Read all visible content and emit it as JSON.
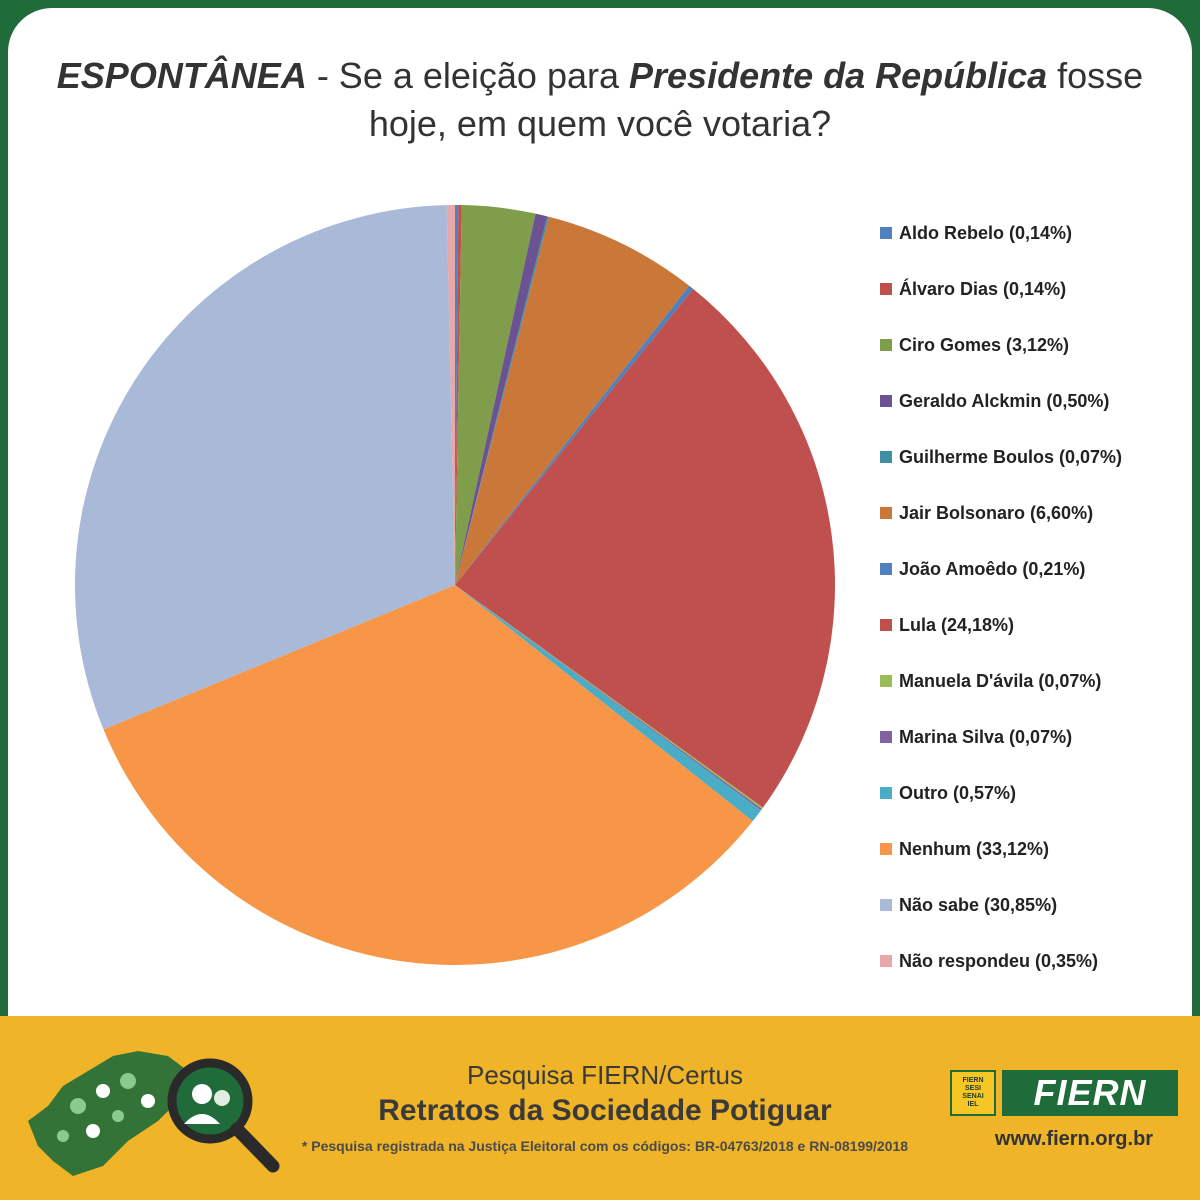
{
  "title": {
    "prefix": "ESPONTÂNEA",
    "part1": " - Se a eleição para ",
    "emphasis": "Presidente da República",
    "part2": " fosse hoje, em quem você votaria?"
  },
  "chart_data": {
    "type": "pie",
    "start_angle_deg": -90,
    "direction": "clockwise",
    "slices": [
      {
        "label": "Aldo Rebelo (0,14%)",
        "value": 0.14,
        "color": "#4f81bd"
      },
      {
        "label": "Álvaro Dias (0,14%)",
        "value": 0.14,
        "color": "#c0504d"
      },
      {
        "label": "Ciro Gomes (3,12%)",
        "value": 3.12,
        "color": "#9bbb59"
      },
      {
        "label": "Geraldo Alckmin (0,50%)",
        "value": 0.5,
        "color": "#8064a2"
      },
      {
        "label": "Guilherme Boulos (0,07%)",
        "value": 0.07,
        "color": "#4bacc6"
      },
      {
        "label": "Jair Bolsonaro (6,60%)",
        "value": 6.6,
        "color": "#f79646"
      },
      {
        "label": "João Amoêdo (0,21%)",
        "value": 0.21,
        "color": "#4f81bd"
      },
      {
        "label": "Lula (24,18%)",
        "value": 24.18,
        "color": "#c0504d"
      },
      {
        "label": "Manuela D'ávila (0,07%)",
        "value": 0.07,
        "color": "#9bbb59"
      },
      {
        "label": "Marina Silva (0,07%)",
        "value": 0.07,
        "color": "#8064a2"
      },
      {
        "label": "Outro (0,57%)",
        "value": 0.57,
        "color": "#4bacc6"
      },
      {
        "label": "Nenhum (33,12%)",
        "value": 33.12,
        "color": "#f79646"
      },
      {
        "label": "Não sabe (30,85%)",
        "value": 30.85,
        "color": "#a9b9d8"
      },
      {
        "label": "Não respondeu (0,35%)",
        "value": 0.35,
        "color": "#e6a8a8"
      }
    ],
    "slice_colors_rendered": [
      "#4f81bd",
      "#c0504d",
      "#7f9d4a",
      "#6a5293",
      "#3f8fa3",
      "#c9783a",
      "#4f81bd",
      "#c0504d",
      "#9bbb59",
      "#8064a2",
      "#4bacc6",
      "#f79646",
      "#a9b9d8",
      "#e6a8a8"
    ]
  },
  "footer": {
    "survey_line": "Pesquisa FIERN/Certus",
    "survey_title": "Retratos da Sociedade Potiguar",
    "note": "* Pesquisa registrada na Justiça Eleitoral com os códigos: BR-04763/2018 e RN-08199/2018",
    "logo_text": "FIERN",
    "logo_mini_lines": [
      "FIERN",
      "SESI",
      "SENAI",
      "IEL"
    ],
    "website": "www.fiern.org.br"
  },
  "colors": {
    "background": "#1f6b3a",
    "footer": "#f0b429",
    "brand_green": "#1f6b3a"
  }
}
